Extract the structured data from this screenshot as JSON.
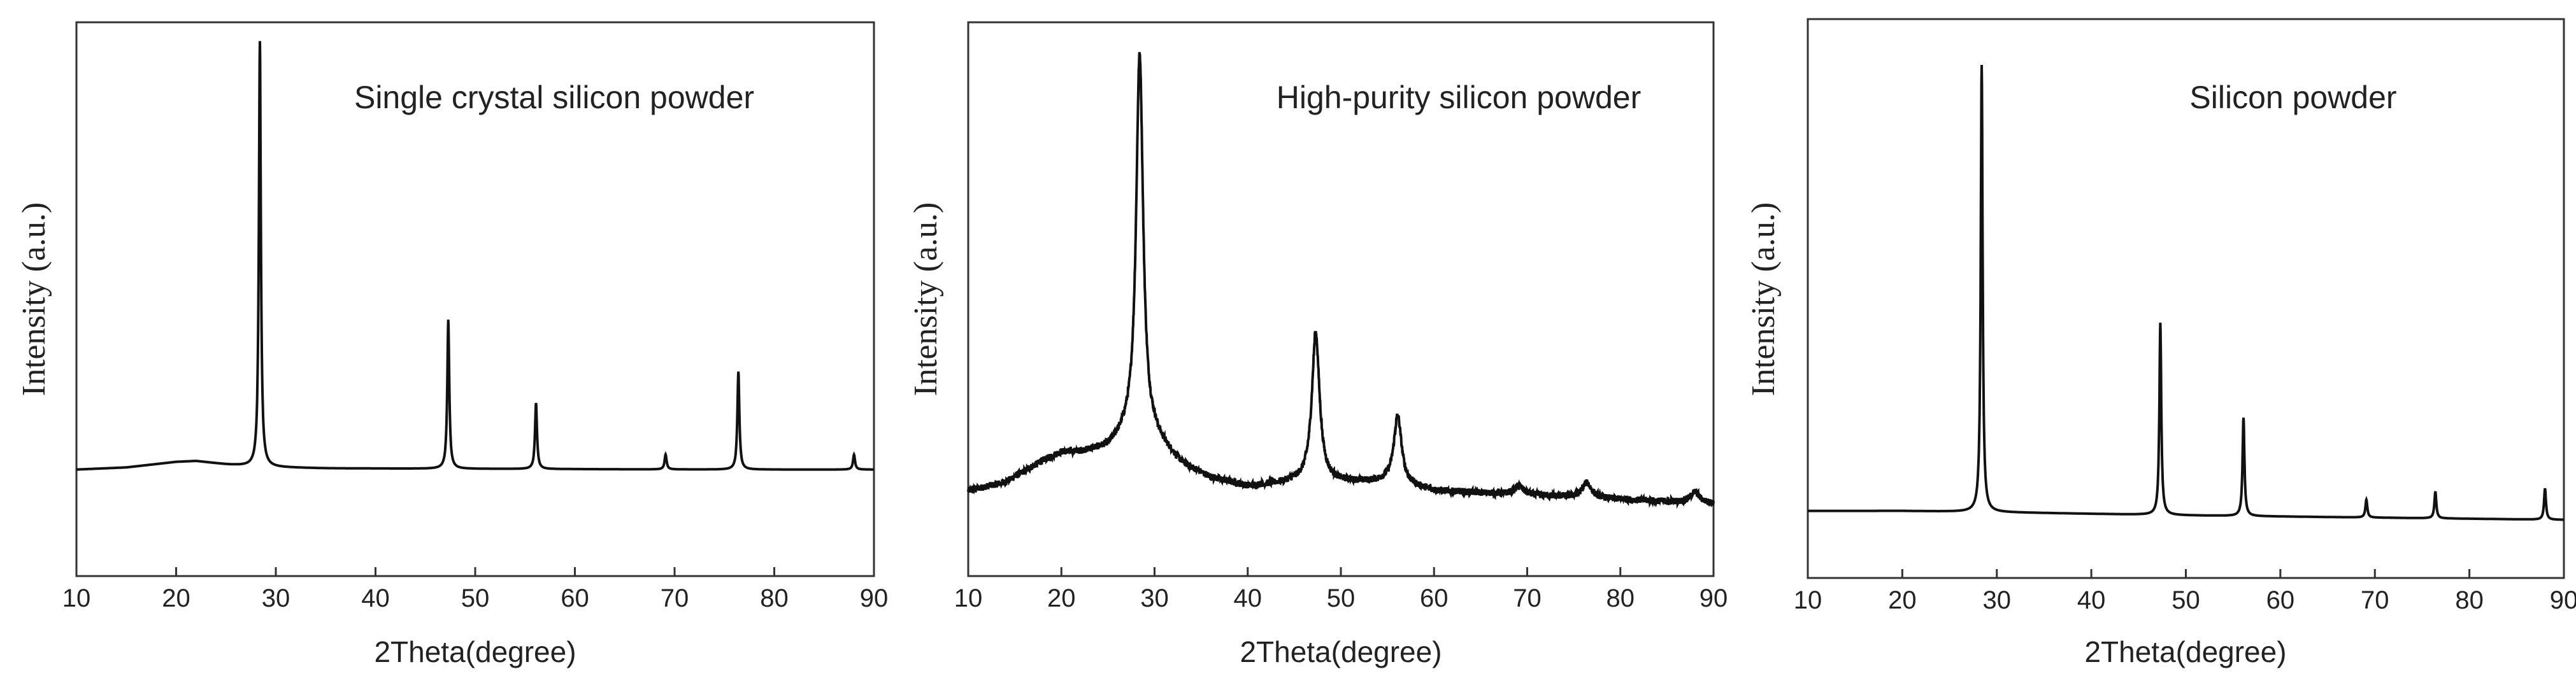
{
  "figure": {
    "line_color": "#111111",
    "frame_color": "#333333",
    "panels": [
      {
        "chart_data": {
          "type": "line",
          "title": "Single crystal silicon powder",
          "xlabel": "2Theta(degree)",
          "ylabel": "Intensity (a.u.)",
          "xlim": [
            10,
            90
          ],
          "ylim": [
            -0.25,
            1.05
          ],
          "xticks": [
            10,
            20,
            30,
            40,
            50,
            60,
            70,
            80,
            90
          ],
          "yticks_shown": false,
          "grid": false,
          "legend": "none",
          "baseline": [
            [
              10,
              0.0
            ],
            [
              15,
              0.005
            ],
            [
              20,
              0.018
            ],
            [
              22,
              0.02
            ],
            [
              25,
              0.012
            ],
            [
              28,
              0.006
            ],
            [
              35,
              0.003
            ],
            [
              45,
              0.002
            ],
            [
              60,
              0.001
            ],
            [
              75,
              0.0
            ],
            [
              90,
              0.0
            ]
          ],
          "peaks": [
            {
              "x": 28.4,
              "y": 1.0,
              "width": 0.12
            },
            {
              "x": 47.3,
              "y": 0.35,
              "width": 0.12
            },
            {
              "x": 56.1,
              "y": 0.155,
              "width": 0.12
            },
            {
              "x": 69.1,
              "y": 0.035,
              "width": 0.12
            },
            {
              "x": 76.4,
              "y": 0.23,
              "width": 0.12
            },
            {
              "x": 88.0,
              "y": 0.035,
              "width": 0.12
            }
          ],
          "noise": 0.0
        }
      },
      {
        "chart_data": {
          "type": "line",
          "title": "High-purity silicon powder",
          "xlabel": "2Theta(degree)",
          "ylabel": "Intensity (a.u.)",
          "xlim": [
            10,
            90
          ],
          "ylim": [
            -0.2,
            1.1
          ],
          "xticks": [
            10,
            20,
            30,
            40,
            50,
            60,
            70,
            80,
            90
          ],
          "yticks_shown": false,
          "grid": false,
          "legend": "none",
          "baseline": [
            [
              10,
              0.0
            ],
            [
              14,
              0.02
            ],
            [
              18,
              0.07
            ],
            [
              20,
              0.09
            ],
            [
              22,
              0.09
            ],
            [
              25,
              0.1
            ],
            [
              27,
              0.13
            ],
            [
              30,
              0.12
            ],
            [
              33,
              0.06
            ],
            [
              36,
              0.03
            ],
            [
              40,
              0.01
            ],
            [
              45,
              0.02
            ],
            [
              50,
              0.02
            ],
            [
              55,
              0.02
            ],
            [
              60,
              0.0
            ],
            [
              70,
              -0.01
            ],
            [
              80,
              -0.02
            ],
            [
              90,
              -0.03
            ]
          ],
          "peaks": [
            {
              "x": 28.4,
              "y": 0.9,
              "width": 0.45
            },
            {
              "x": 47.3,
              "y": 0.35,
              "width": 0.5
            },
            {
              "x": 56.1,
              "y": 0.16,
              "width": 0.5
            },
            {
              "x": 69.1,
              "y": 0.02,
              "width": 0.6
            },
            {
              "x": 76.4,
              "y": 0.035,
              "width": 0.6
            },
            {
              "x": 88.0,
              "y": 0.025,
              "width": 0.6
            }
          ],
          "noise": 0.008
        }
      },
      {
        "chart_data": {
          "type": "line",
          "title": "Silicon powder",
          "xlabel": "2Theta(degree)",
          "ylabel": "Intensity (a.u.)",
          "xlim": [
            10,
            90
          ],
          "ylim": [
            -0.15,
            1.1
          ],
          "xticks": [
            10,
            20,
            30,
            40,
            50,
            60,
            70,
            80,
            90
          ],
          "yticks_shown": false,
          "grid": false,
          "legend": "none",
          "baseline": [
            [
              10,
              0.0
            ],
            [
              20,
              0.0
            ],
            [
              30,
              -0.003
            ],
            [
              50,
              -0.01
            ],
            [
              70,
              -0.015
            ],
            [
              90,
              -0.02
            ]
          ],
          "peaks": [
            {
              "x": 28.4,
              "y": 1.0,
              "width": 0.12
            },
            {
              "x": 47.3,
              "y": 0.43,
              "width": 0.12
            },
            {
              "x": 56.1,
              "y": 0.22,
              "width": 0.12
            },
            {
              "x": 69.1,
              "y": 0.04,
              "width": 0.12
            },
            {
              "x": 76.4,
              "y": 0.06,
              "width": 0.12
            },
            {
              "x": 88.0,
              "y": 0.07,
              "width": 0.12
            }
          ],
          "noise": 0.0
        }
      }
    ]
  }
}
